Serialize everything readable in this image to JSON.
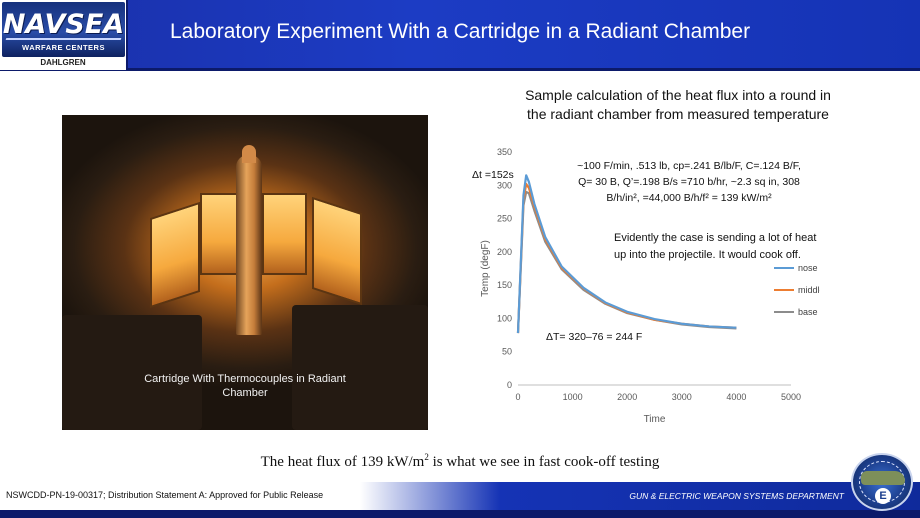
{
  "header": {
    "logo_word": "NAVSEA",
    "logo_sub": "WARFARE CENTERS",
    "logo_location": "DAHLGREN",
    "title": "Laboratory Experiment With a Cartridge in a Radiant Chamber"
  },
  "photo": {
    "caption": "Cartridge With Thermocouples in Radiant Chamber"
  },
  "calc": {
    "heading": "Sample calculation of the heat flux into a round in the radiant chamber from measured temperature"
  },
  "chart_data": {
    "type": "line",
    "title": "",
    "xlabel": "Time",
    "ylabel": "Temp (degF)",
    "xlim": [
      0,
      5000
    ],
    "ylim": [
      0,
      350
    ],
    "xticks": [
      0,
      1000,
      2000,
      3000,
      4000,
      5000
    ],
    "yticks": [
      0,
      50,
      100,
      150,
      200,
      250,
      300,
      350
    ],
    "legend_position": "right",
    "series": [
      {
        "name": "nose",
        "color": "#5b9bd5",
        "x": [
          0,
          100,
          150,
          200,
          300,
          500,
          800,
          1200,
          1600,
          2000,
          2500,
          3000,
          3500,
          4000
        ],
        "y": [
          78,
          285,
          315,
          305,
          272,
          222,
          178,
          146,
          124,
          110,
          99,
          92,
          88,
          86
        ]
      },
      {
        "name": "middle",
        "color": "#ed7d31",
        "x": [
          0,
          100,
          150,
          200,
          300,
          500,
          800,
          1200,
          1600,
          2000,
          2500,
          3000,
          3500,
          4000
        ],
        "y": [
          78,
          278,
          302,
          296,
          268,
          219,
          176,
          145,
          123,
          109,
          98,
          92,
          88,
          86
        ]
      },
      {
        "name": "base",
        "color": "#8c8c8c",
        "x": [
          0,
          100,
          150,
          200,
          300,
          500,
          800,
          1200,
          1600,
          2000,
          2500,
          3000,
          3500,
          4000
        ],
        "y": [
          78,
          270,
          290,
          288,
          262,
          215,
          174,
          143,
          122,
          108,
          98,
          91,
          87,
          85
        ]
      }
    ],
    "annotations": {
      "dt": "Δt =152s",
      "calc_lines": [
        "~100 F/min, .513 lb, cp=.241 B/lb/F, C=.124 B/F,",
        "Q= 30 B, Q’=.198 B/s =710 b/hr, ~2.3 sq in, 308",
        "B/h/in², =44,000 B/h/f² = 139 kW/m²"
      ],
      "note_lines": [
        "Evidently the case is sending a lot of heat",
        "up into the projectile.  It would cook off."
      ],
      "delta": "ΔT= 320–76 = 244 F"
    }
  },
  "conclusion": {
    "text_before": "The heat flux of 139 kW/m",
    "superscript": "2",
    "text_after": " is what we see in fast cook-off testing"
  },
  "footer": {
    "left": "NSWCDD-PN-19-00317; Distribution Statement A: Approved for Public Release",
    "dept": "GUN & ELECTRIC WEAPON SYSTEMS DEPARTMENT",
    "badge_letter": "E"
  }
}
